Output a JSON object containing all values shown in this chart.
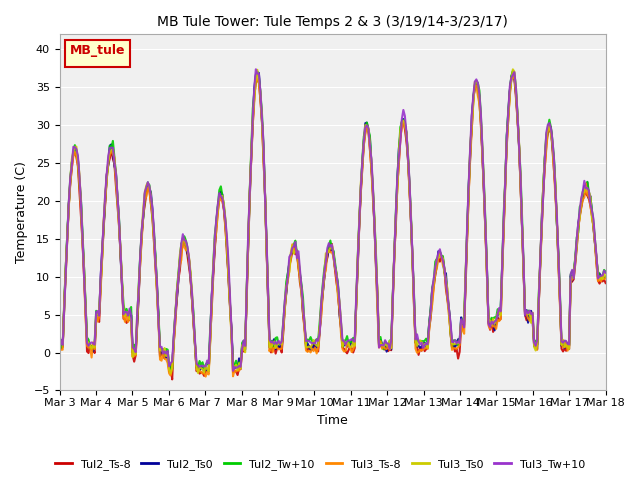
{
  "title": "MB Tule Tower: Tule Temps 2 & 3 (3/19/14-3/23/17)",
  "xlabel": "Time",
  "ylabel": "Temperature (C)",
  "ylim": [
    -5,
    42
  ],
  "yticks": [
    -5,
    0,
    5,
    10,
    15,
    20,
    25,
    30,
    35,
    40
  ],
  "xtick_labels": [
    "Mar 3",
    "Mar 4",
    "Mar 5",
    "Mar 6",
    "Mar 7",
    "Mar 8",
    "Mar 9",
    "Mar 10",
    "Mar 11",
    "Mar 12",
    "Mar 13",
    "Mar 14",
    "Mar 15",
    "Mar 16",
    "Mar 17",
    "Mar 18"
  ],
  "legend_label": "MB_tule",
  "series_names": [
    "Tul2_Ts-8",
    "Tul2_Ts0",
    "Tul2_Tw+10",
    "Tul3_Ts-8",
    "Tul3_Ts0",
    "Tul3_Tw+10"
  ],
  "series_colors": [
    "#cc0000",
    "#000099",
    "#00cc00",
    "#ff8800",
    "#cccc00",
    "#9933cc"
  ],
  "series_lw": [
    1.5,
    1.5,
    1.5,
    1.5,
    1.5,
    1.5
  ],
  "bg_color": "#e8e8e8",
  "plot_bg_color": "#f0f0f0",
  "day_peaks": [
    27,
    27,
    22,
    15,
    21,
    37,
    14,
    14,
    30,
    31,
    13,
    36,
    37,
    30,
    22
  ],
  "day_mins": [
    1,
    5,
    0,
    -2,
    -2,
    1,
    1,
    1,
    1,
    1,
    1,
    4,
    5,
    1,
    10
  ]
}
